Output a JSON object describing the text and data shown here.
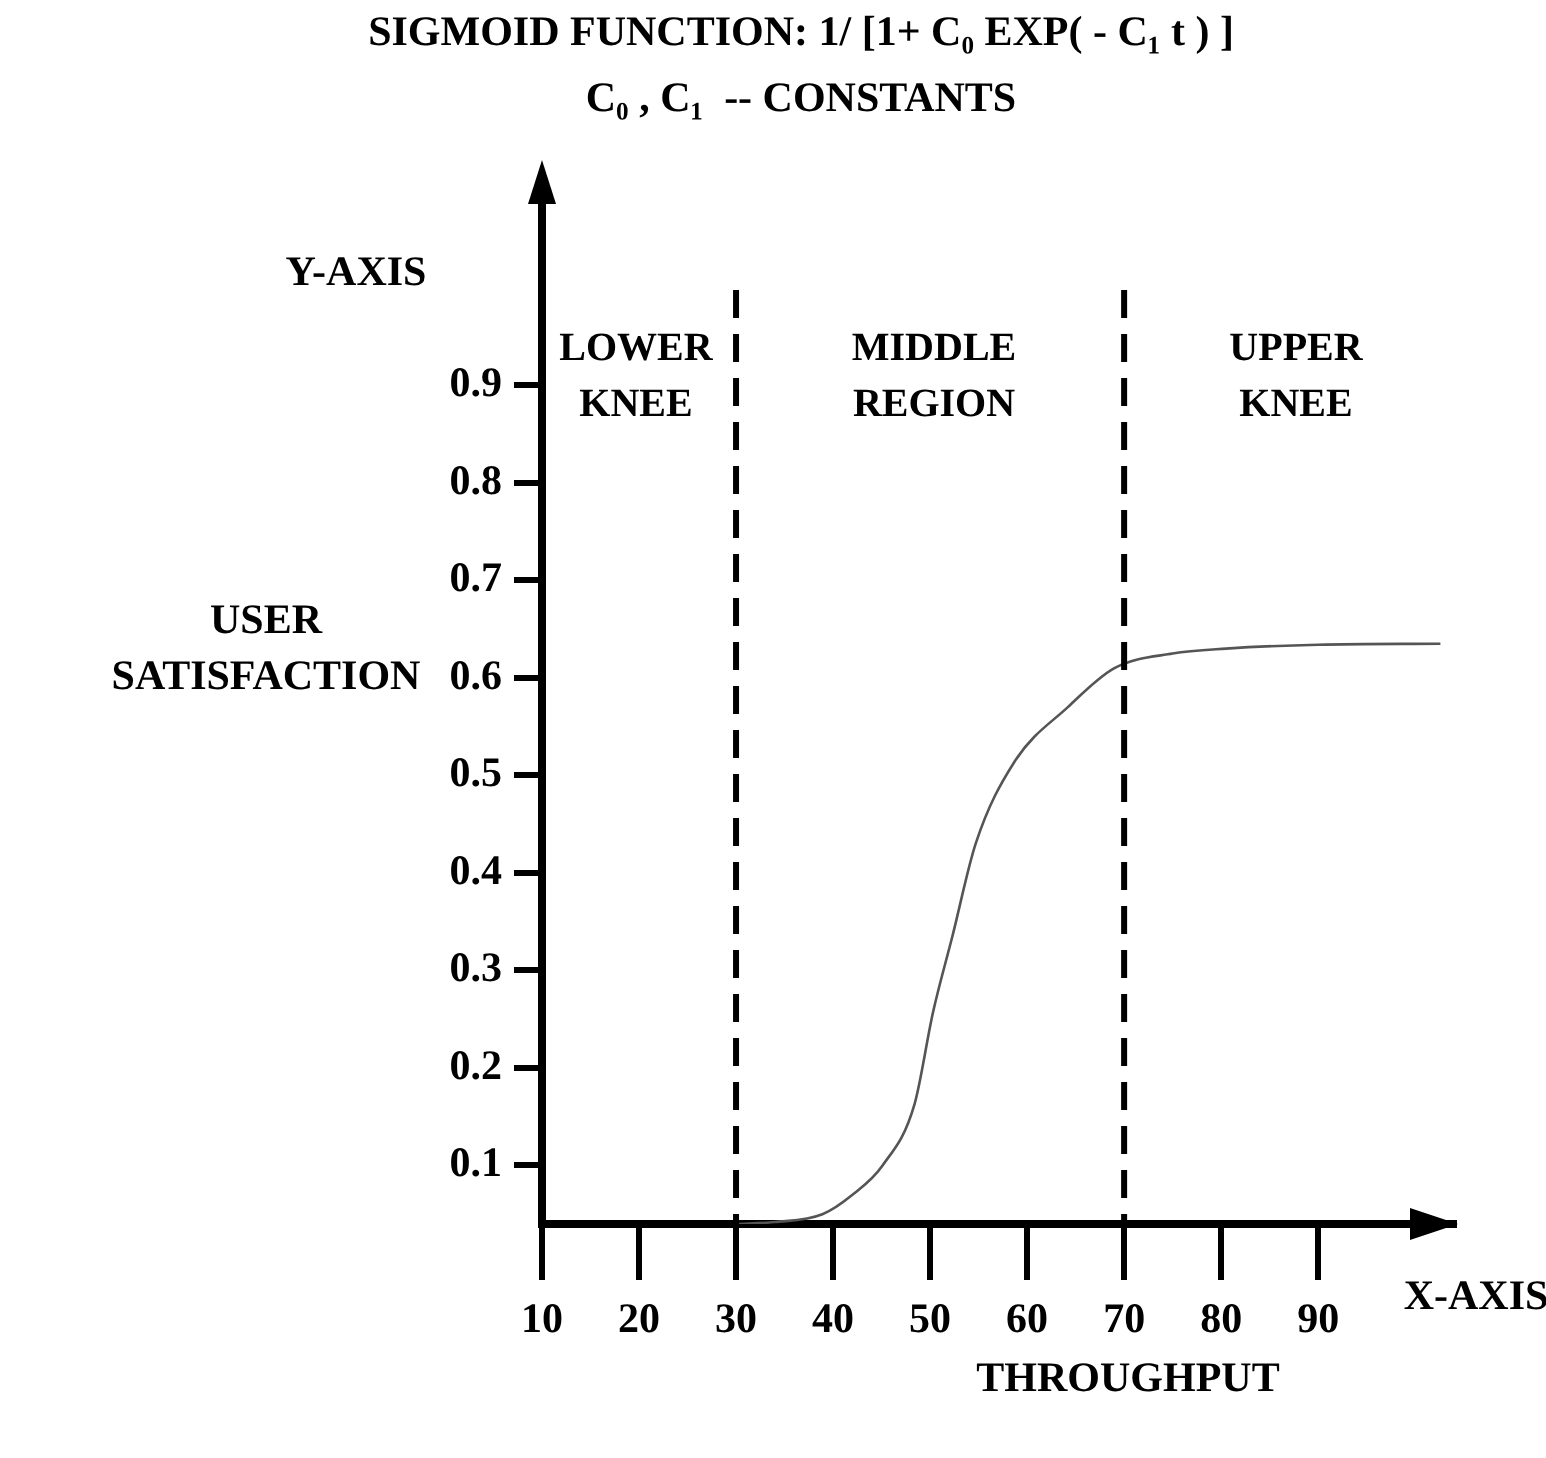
{
  "chart_data": {
    "type": "line",
    "title": "SIGMOID FUNCTION: 1/ [1+ C₀ EXP( - C₁ t ) ]",
    "subtitle": "C₀ , C₁  -- CONSTANTS",
    "xlabel": "THROUGHPUT",
    "ylabel": "USER SATISFACTION",
    "annotations": [
      "Y-AXIS",
      "X-AXIS",
      "LOWER KNEE",
      "MIDDLE REGION",
      "UPPER KNEE"
    ],
    "x": [
      30,
      34,
      38.9,
      42,
      45.1,
      48.4,
      50.3,
      52.3,
      54.7,
      58.7,
      64.2,
      69,
      75,
      80.5,
      90,
      102.6
    ],
    "series": [
      {
        "color": "#555555",
        "values": [
          0.04,
          0.042,
          0.05,
          0.07,
          0.1,
          0.163,
          0.257,
          0.335,
          0.43,
          0.514,
          0.57,
          0.61,
          0.625,
          0.63,
          0.634,
          0.635
        ]
      }
    ],
    "xlim": [
      10,
      104
    ],
    "ylim": [
      0.04,
      1.09
    ],
    "xticks": [
      10,
      20,
      30,
      40,
      50,
      60,
      70,
      80,
      90
    ],
    "yticks": [
      0.1,
      0.2,
      0.3,
      0.4,
      0.5,
      0.6,
      0.7,
      0.8,
      0.9
    ],
    "ref_lines": [
      {
        "axis": "x",
        "value": 30,
        "line_style": "dashed"
      },
      {
        "axis": "x",
        "value": 70,
        "line_style": "dashed"
      }
    ],
    "marker": "none",
    "line_style": "solid",
    "grid": false,
    "legend": false
  }
}
